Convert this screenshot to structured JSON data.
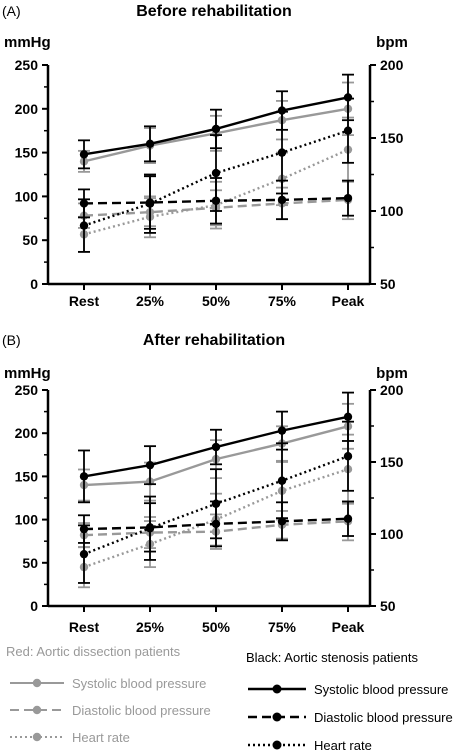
{
  "chart_data": [
    {
      "type": "line",
      "panel_label": "(A)",
      "title": "Before rehabilitation",
      "ylabel_left": "mmHg",
      "ylabel_right": "bpm",
      "categories": [
        "Rest",
        "25%",
        "50%",
        "75%",
        "Peak"
      ],
      "y_left": {
        "ylim": [
          0,
          250
        ],
        "ticks": [
          "0",
          "50",
          "100",
          "150",
          "200",
          "250"
        ]
      },
      "y_right": {
        "ylim": [
          50,
          200
        ],
        "ticks": [
          "50",
          "100",
          "150",
          "200"
        ]
      },
      "series": [
        {
          "group": "dissection",
          "measure": "systolic",
          "axis": "left",
          "color": "#999999",
          "dash": "solid",
          "values": [
            140,
            158,
            172,
            187,
            200
          ],
          "err": [
            12,
            20,
            20,
            22,
            30
          ]
        },
        {
          "group": "dissection",
          "measure": "diastolic",
          "axis": "left",
          "color": "#999999",
          "dash": "dashed",
          "values": [
            78,
            82,
            87,
            92,
            96
          ],
          "err": [
            14,
            16,
            20,
            18,
            22
          ]
        },
        {
          "group": "dissection",
          "measure": "heart_rate",
          "axis": "right",
          "color": "#999999",
          "dash": "dotted",
          "values": [
            84,
            96,
            104,
            122,
            142
          ],
          "err": [
            12,
            14,
            16,
            18,
            22
          ]
        },
        {
          "group": "stenosis",
          "measure": "systolic",
          "axis": "left",
          "color": "#000000",
          "dash": "solid",
          "values": [
            148,
            160,
            177,
            198,
            213
          ],
          "err": [
            16,
            20,
            22,
            22,
            26
          ]
        },
        {
          "group": "stenosis",
          "measure": "diastolic",
          "axis": "left",
          "color": "#000000",
          "dash": "dashed",
          "values": [
            92,
            93,
            95,
            96,
            98
          ],
          "err": [
            16,
            30,
            26,
            22,
            20
          ]
        },
        {
          "group": "stenosis",
          "measure": "heart_rate",
          "axis": "right",
          "color": "#000000",
          "dash": "dotted",
          "values": [
            90,
            105,
            126,
            140,
            155
          ],
          "err": [
            18,
            20,
            26,
            28,
            22
          ]
        }
      ]
    },
    {
      "type": "line",
      "panel_label": "(B)",
      "title": "After rehabilitation",
      "ylabel_left": "mmHg",
      "ylabel_right": "bpm",
      "categories": [
        "Rest",
        "25%",
        "50%",
        "75%",
        "Peak"
      ],
      "y_left": {
        "ylim": [
          0,
          250
        ],
        "ticks": [
          "0",
          "50",
          "100",
          "150",
          "200",
          "250"
        ]
      },
      "y_right": {
        "ylim": [
          50,
          200
        ],
        "ticks": [
          "50",
          "100",
          "150",
          "200"
        ]
      },
      "series": [
        {
          "group": "dissection",
          "measure": "systolic",
          "axis": "left",
          "color": "#999999",
          "dash": "solid",
          "values": [
            140,
            144,
            170,
            188,
            208
          ],
          "err": [
            18,
            22,
            22,
            20,
            26
          ]
        },
        {
          "group": "dissection",
          "measure": "diastolic",
          "axis": "left",
          "color": "#999999",
          "dash": "dashed",
          "values": [
            82,
            85,
            86,
            94,
            98
          ],
          "err": [
            14,
            18,
            20,
            16,
            22
          ]
        },
        {
          "group": "dissection",
          "measure": "heart_rate",
          "axis": "right",
          "color": "#999999",
          "dash": "dotted",
          "values": [
            77,
            93,
            110,
            130,
            145
          ],
          "err": [
            14,
            16,
            18,
            20,
            24
          ]
        },
        {
          "group": "stenosis",
          "measure": "systolic",
          "axis": "left",
          "color": "#000000",
          "dash": "solid",
          "values": [
            150,
            163,
            184,
            203,
            219
          ],
          "err": [
            30,
            22,
            20,
            22,
            28
          ]
        },
        {
          "group": "stenosis",
          "measure": "diastolic",
          "axis": "left",
          "color": "#000000",
          "dash": "dashed",
          "values": [
            89,
            91,
            95,
            98,
            101
          ],
          "err": [
            16,
            28,
            26,
            22,
            20
          ]
        },
        {
          "group": "stenosis",
          "measure": "heart_rate",
          "axis": "right",
          "color": "#000000",
          "dash": "dotted",
          "values": [
            86,
            104,
            121,
            137,
            154
          ],
          "err": [
            20,
            22,
            24,
            26,
            24
          ]
        }
      ]
    }
  ],
  "legend": {
    "left_title": "Red: Aortic dissection patients",
    "right_title": "Black: Aortic stenosis patients",
    "left_items": [
      "Systolic blood pressure",
      "Diastolic blood pressure",
      "Heart rate"
    ],
    "right_items": [
      "Systolic blood pressure",
      "Diastolic blood pressure",
      "Heart rate"
    ],
    "left_color": "#999999",
    "right_color": "#000000"
  }
}
